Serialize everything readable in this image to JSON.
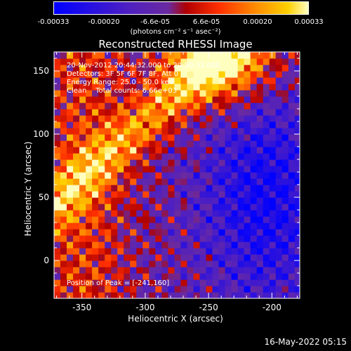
{
  "chart_data": {
    "type": "heatmap",
    "title": "Reconstructed RHESSI Image",
    "xlabel": "Heliocentric X (arcsec)",
    "ylabel": "Heliocentric Y (arcsec)",
    "xlim": [
      -372,
      -178
    ],
    "ylim": [
      -30,
      165
    ],
    "xticks": [
      "-350",
      "-300",
      "-250",
      "-200"
    ],
    "xtick_values": [
      -350,
      -300,
      -250,
      -200
    ],
    "yticks": [
      "0",
      "50",
      "100",
      "150"
    ],
    "ytick_values": [
      0,
      50,
      100,
      150
    ],
    "colorbar": {
      "ticks": [
        "-0.00033",
        "-0.00020",
        "-6.6e-05",
        "6.6e-05",
        "0.00020",
        "0.00033"
      ],
      "unit": "(photons cm⁻² s⁻¹ asec⁻²)",
      "colors": [
        "#0000ff",
        "#5020c0",
        "#6a2aa0",
        "#c00000",
        "#ff3000",
        "#ff9000",
        "#ffd000",
        "#ffffc0"
      ]
    },
    "annotations": {
      "time": "20-Nov-2012 20:44:32.000 to 20:50:32.000",
      "detectors": "Detectors: 3F 5F 6F 7F 8F, Att 0",
      "energy": "Energy Range: 25.0 - 50.0 keV",
      "clean": "Clean    Total counts: 6.66e+03",
      "peak": "Position of Peak = [-241,160]"
    }
  },
  "footer_date": "16-May-2022 05:15"
}
